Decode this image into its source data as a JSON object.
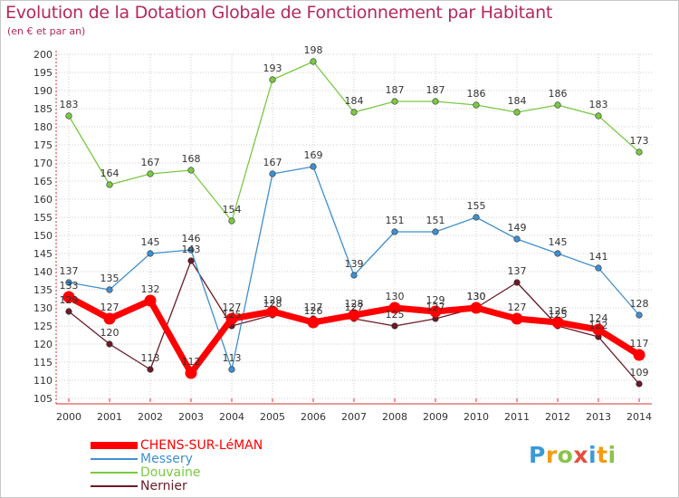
{
  "title": "Evolution de la Dotation Globale de Fonctionnement par Habitant",
  "subtitle": "(en € et par an)",
  "colors": {
    "title": "#b5285e",
    "axis": "#d63030",
    "grid": "#cfcfcf",
    "tick_text": "#333333"
  },
  "chart_data": {
    "type": "line",
    "title": "Evolution de la Dotation Globale de Fonctionnement par Habitant",
    "subtitle": "(en € et par an)",
    "xlabel": "",
    "ylabel": "",
    "x": [
      "2000",
      "2001",
      "2002",
      "2003",
      "2004",
      "2005",
      "2006",
      "2007",
      "2008",
      "2009",
      "2010",
      "2011",
      "2012",
      "2013",
      "2014"
    ],
    "ylim": [
      105,
      200
    ],
    "yticks": [
      105,
      110,
      115,
      120,
      125,
      130,
      135,
      140,
      145,
      150,
      155,
      160,
      165,
      170,
      175,
      180,
      185,
      190,
      195,
      200
    ],
    "grid": true,
    "legend_position": "bottom-left",
    "series": [
      {
        "name": "Nernier",
        "color": "#6b1a26",
        "values": [
          129,
          120,
          113,
          143,
          125,
          128,
          127,
          127,
          125,
          127,
          130,
          137,
          125,
          122,
          109
        ]
      },
      {
        "name": "Douvaine",
        "color": "#7ac943",
        "values": [
          183,
          164,
          167,
          168,
          154,
          193,
          198,
          184,
          187,
          187,
          186,
          184,
          186,
          183,
          173
        ]
      },
      {
        "name": "Messery",
        "color": "#3f8fcf",
        "values": [
          137,
          135,
          145,
          146,
          113,
          167,
          169,
          139,
          151,
          151,
          155,
          149,
          145,
          141,
          128
        ]
      },
      {
        "name": "CHENS-SUR-LéMAN",
        "color": "#ff0000",
        "values": [
          133,
          127,
          132,
          112,
          127,
          129,
          126,
          128,
          130,
          129,
          130,
          127,
          126,
          124,
          117
        ]
      }
    ]
  },
  "legend": [
    {
      "label": "CHENS-SUR-LéMAN",
      "color": "#ff0000"
    },
    {
      "label": "Messery",
      "color": "#3f8fcf"
    },
    {
      "label": "Douvaine",
      "color": "#7ac943"
    },
    {
      "label": "Nernier",
      "color": "#6b1a26"
    }
  ],
  "logo": {
    "letters": [
      "P",
      "r",
      "o",
      "x",
      "i",
      "t",
      "i"
    ],
    "colors": [
      "#3a9ad9",
      "#f39c12",
      "#8bc34a",
      "#e74c3c",
      "#3a9ad9",
      "#f39c12",
      "#8bc34a"
    ]
  }
}
